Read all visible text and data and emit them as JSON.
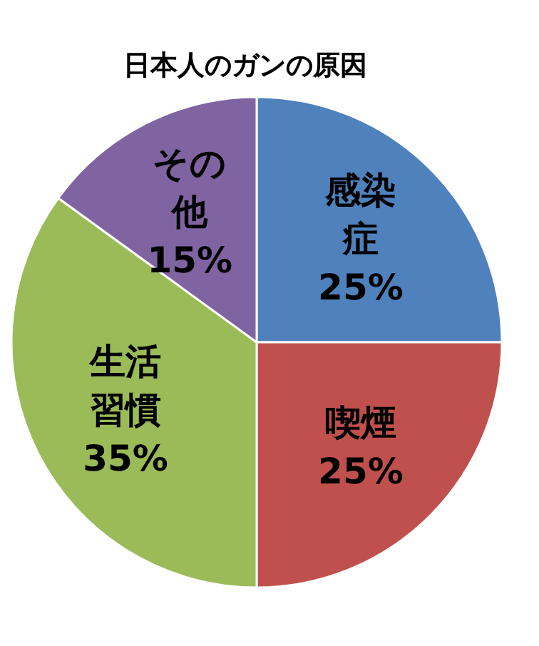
{
  "chart_data": {
    "type": "pie",
    "title": "日本人のガンの原因",
    "categories": [
      "感染症",
      "喫煙",
      "生活習慣",
      "その他"
    ],
    "values": [
      25,
      25,
      35,
      15
    ],
    "value_labels": [
      "25%",
      "25%",
      "35%",
      "15%"
    ],
    "colors": [
      "#4f81bd",
      "#c0504d",
      "#9bbb59",
      "#8064a2"
    ]
  }
}
